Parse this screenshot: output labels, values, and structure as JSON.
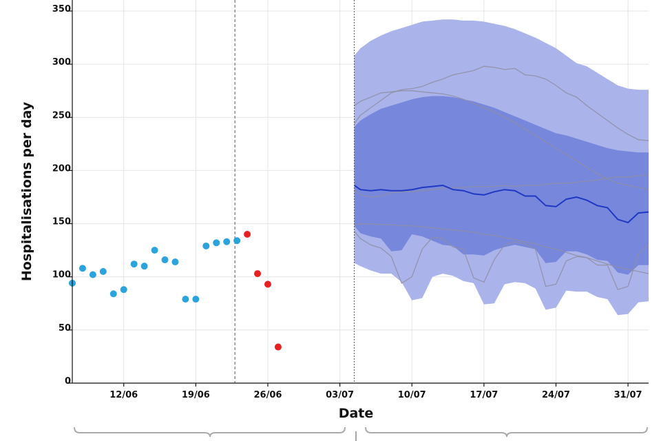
{
  "chart_data": {
    "type": "scatter",
    "title": "",
    "xlabel": "Date",
    "ylabel": "Hospitalisations per day",
    "ylim": [
      0,
      350
    ],
    "xlim": [
      0,
      56
    ],
    "grid": true,
    "yticks": [
      0,
      50,
      100,
      150,
      200,
      250,
      300,
      350
    ],
    "xticks": [
      {
        "x": 5,
        "label": "12/06"
      },
      {
        "x": 12,
        "label": "19/06"
      },
      {
        "x": 19,
        "label": "26/06"
      },
      {
        "x": 26,
        "label": "03/07"
      },
      {
        "x": 33,
        "label": "10/07"
      },
      {
        "x": 40,
        "label": "17/07"
      },
      {
        "x": 47,
        "label": "24/07"
      },
      {
        "x": 54,
        "label": "31/07"
      }
    ],
    "vlines": [
      {
        "x": 15.8,
        "style": "dashed",
        "name": "data-cutoff-line"
      },
      {
        "x": 27.4,
        "style": "dotted",
        "name": "forecast-start-line"
      }
    ],
    "series": [
      {
        "name": "observed",
        "color": "#2ba3dd",
        "x": [
          0,
          1,
          2,
          3,
          4,
          5,
          6,
          7,
          8,
          9,
          10,
          11,
          12,
          13,
          14,
          15,
          16
        ],
        "y": [
          94,
          108,
          102,
          105,
          84,
          88,
          112,
          110,
          125,
          116,
          114,
          79,
          79,
          129,
          132,
          133,
          134
        ]
      },
      {
        "name": "observed-late",
        "color": "#e8201f",
        "x": [
          17,
          18,
          19,
          20
        ],
        "y": [
          140,
          103,
          93,
          34
        ]
      }
    ],
    "forecast": {
      "x": [
        27.4,
        28,
        29,
        30,
        31,
        32,
        33,
        34,
        35,
        36,
        37,
        38,
        39,
        40,
        41,
        42,
        43,
        44,
        45,
        46,
        47,
        48,
        49,
        50,
        51,
        52,
        53,
        54,
        55,
        56
      ],
      "median": [
        186,
        182,
        181,
        182,
        181,
        181,
        182,
        184,
        185,
        186,
        182,
        181,
        178,
        177,
        180,
        182,
        181,
        176,
        176,
        167,
        166,
        173,
        175,
        172,
        167,
        165,
        154,
        151,
        160,
        161
      ],
      "outer_upper": [
        308,
        315,
        322,
        327,
        331,
        334,
        337,
        340,
        341,
        342,
        342,
        341,
        341,
        340,
        338,
        336,
        333,
        329,
        325,
        320,
        315,
        308,
        301,
        298,
        292,
        286,
        280,
        277,
        276,
        276
      ],
      "outer_lower": [
        113,
        110,
        106,
        103,
        103,
        95,
        78,
        80,
        100,
        103,
        101,
        96,
        94,
        74,
        75,
        93,
        95,
        94,
        89,
        69,
        71,
        87,
        86,
        86,
        81,
        79,
        64,
        65,
        76,
        77
      ],
      "inner_upper": [
        241,
        247,
        253,
        258,
        261,
        264,
        267,
        269,
        270,
        270,
        269,
        267,
        265,
        262,
        259,
        255,
        251,
        247,
        243,
        239,
        235,
        233,
        230,
        227,
        224,
        221,
        219,
        218,
        217,
        217
      ],
      "inner_lower": [
        148,
        141,
        138,
        136,
        124,
        125,
        140,
        138,
        134,
        130,
        129,
        121,
        121,
        120,
        125,
        128,
        130,
        128,
        126,
        113,
        114,
        124,
        124,
        121,
        116,
        115,
        104,
        102,
        111,
        111
      ],
      "sample_paths": [
        [
          261,
          265,
          269,
          273,
          274,
          275,
          275,
          274,
          273,
          272,
          270,
          267,
          263,
          259,
          255,
          250,
          245,
          239,
          233,
          227,
          221,
          215,
          209,
          203,
          197,
          192,
          188,
          186,
          184,
          182
        ],
        [
          244,
          252,
          259,
          266,
          273,
          276,
          277,
          279,
          283,
          286,
          290,
          292,
          294,
          298,
          297,
          295,
          296,
          290,
          289,
          286,
          280,
          273,
          269,
          261,
          254,
          247,
          240,
          234,
          229,
          228
        ],
        [
          182,
          177,
          175,
          176,
          179,
          180,
          180,
          181,
          182,
          183,
          184,
          184,
          185,
          185,
          185,
          186,
          185,
          186,
          186,
          187,
          188,
          188,
          189,
          190,
          191,
          193,
          194,
          194,
          195,
          196
        ],
        [
          149,
          150,
          150,
          149,
          149,
          148,
          148,
          147,
          146,
          145,
          144,
          143,
          142,
          140,
          139,
          137,
          135,
          133,
          131,
          128,
          126,
          123,
          120,
          118,
          115,
          112,
          109,
          107,
          105,
          103
        ],
        [
          143,
          136,
          130,
          127,
          119,
          94,
          100,
          126,
          137,
          136,
          128,
          126,
          99,
          95,
          116,
          130,
          133,
          131,
          126,
          91,
          93,
          115,
          119,
          118,
          111,
          111,
          88,
          91,
          122,
          130
        ]
      ],
      "colors": {
        "outer": "#aab3ea",
        "inner": "#7787dc",
        "median": "#1f38c2",
        "paths": "#8e8ea2"
      }
    }
  }
}
